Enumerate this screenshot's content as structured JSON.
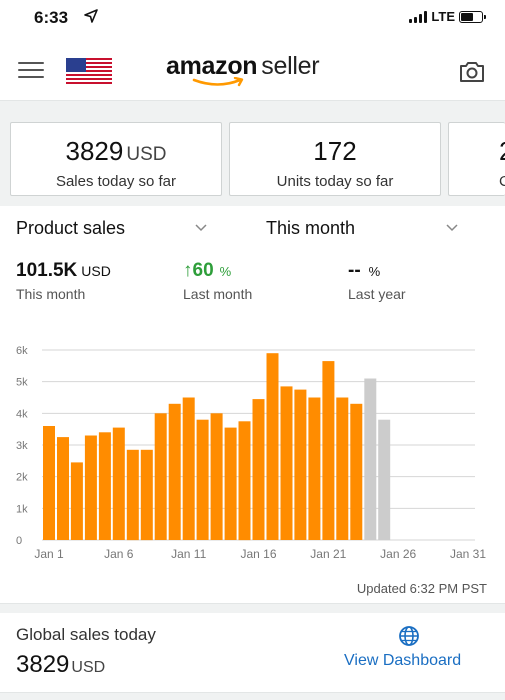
{
  "status_bar": {
    "time": "6:33",
    "network": "LTE"
  },
  "header": {
    "logo_bold": "amazon",
    "logo_light": "seller"
  },
  "cards": [
    {
      "value": "3829",
      "unit": "USD",
      "label": "Sales today so far"
    },
    {
      "value": "172",
      "unit": "",
      "label": "Units today so far"
    },
    {
      "value": "2",
      "unit": "",
      "label": "C"
    }
  ],
  "selectors": {
    "metric": "Product sales",
    "period": "This month"
  },
  "metrics": [
    {
      "value": "101.5K",
      "unit": "USD",
      "label": "This month"
    },
    {
      "arrow": "↑",
      "value": "60",
      "unit": "%",
      "label": "Last month"
    },
    {
      "value": "--",
      "unit": "%",
      "label": "Last year"
    }
  ],
  "chart_data": {
    "type": "bar",
    "title": "",
    "xlabel": "",
    "ylabel": "",
    "ylim": [
      0,
      6000
    ],
    "y_ticks": [
      "0",
      "1k",
      "2k",
      "3k",
      "4k",
      "5k",
      "6k"
    ],
    "x_tick_labels": [
      "Jan 1",
      "Jan 6",
      "Jan 11",
      "Jan 16",
      "Jan 21",
      "Jan 26",
      "Jan 31"
    ],
    "x_tick_days": [
      1,
      6,
      11,
      16,
      21,
      26,
      31
    ],
    "grid": true,
    "bars": [
      {
        "day": 1,
        "value": 3600,
        "status": "actual"
      },
      {
        "day": 2,
        "value": 3250,
        "status": "actual"
      },
      {
        "day": 3,
        "value": 2450,
        "status": "actual"
      },
      {
        "day": 4,
        "value": 3300,
        "status": "actual"
      },
      {
        "day": 5,
        "value": 3400,
        "status": "actual"
      },
      {
        "day": 6,
        "value": 3550,
        "status": "actual"
      },
      {
        "day": 7,
        "value": 2850,
        "status": "actual"
      },
      {
        "day": 8,
        "value": 2850,
        "status": "actual"
      },
      {
        "day": 9,
        "value": 4000,
        "status": "actual"
      },
      {
        "day": 10,
        "value": 4300,
        "status": "actual"
      },
      {
        "day": 11,
        "value": 4500,
        "status": "actual"
      },
      {
        "day": 12,
        "value": 3800,
        "status": "actual"
      },
      {
        "day": 13,
        "value": 4000,
        "status": "actual"
      },
      {
        "day": 14,
        "value": 3550,
        "status": "actual"
      },
      {
        "day": 15,
        "value": 3750,
        "status": "actual"
      },
      {
        "day": 16,
        "value": 4450,
        "status": "actual"
      },
      {
        "day": 17,
        "value": 5900,
        "status": "actual"
      },
      {
        "day": 18,
        "value": 4850,
        "status": "actual"
      },
      {
        "day": 19,
        "value": 4750,
        "status": "actual"
      },
      {
        "day": 20,
        "value": 4500,
        "status": "actual"
      },
      {
        "day": 21,
        "value": 5650,
        "status": "actual"
      },
      {
        "day": 22,
        "value": 4500,
        "status": "actual"
      },
      {
        "day": 23,
        "value": 4300,
        "status": "actual"
      },
      {
        "day": 24,
        "value": 5100,
        "status": "partial"
      },
      {
        "day": 25,
        "value": 3800,
        "status": "partial"
      }
    ],
    "colors": {
      "actual": "#ff8c00",
      "partial": "#cccccc"
    }
  },
  "updated": "Updated 6:32 PM PST",
  "global_sales": {
    "label": "Global sales today",
    "value": "3829",
    "unit": "USD"
  },
  "view_dashboard": "View Dashboard",
  "icons": {
    "menu": "menu-icon",
    "flag": "us-flag-icon",
    "camera": "camera-icon",
    "globe": "globe-icon"
  },
  "colors": {
    "accent_orange": "#ff9900",
    "link_blue": "#1a6ec2",
    "positive_green": "#2e9e3a"
  }
}
